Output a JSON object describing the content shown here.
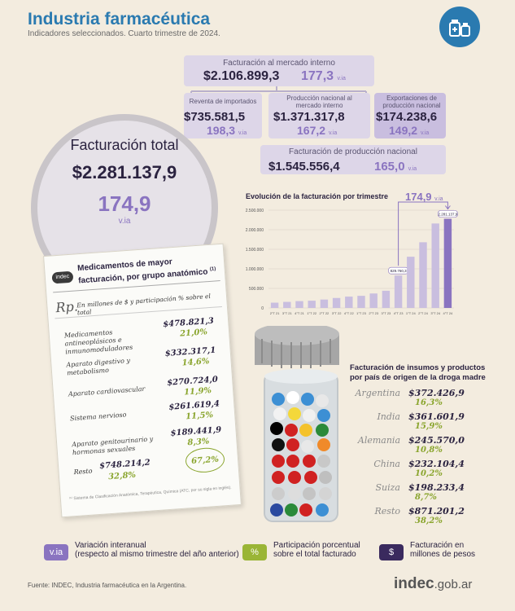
{
  "header": {
    "title": "Industria farmacéutica",
    "subtitle": "Indicadores seleccionados. Cuarto trimestre de 2024."
  },
  "mercado_interno": {
    "label": "Facturación al mercado interno",
    "value": "$2.106.899,3",
    "via": "177,3",
    "via_unit": "v.ia"
  },
  "reventa": {
    "label": "Reventa de importados",
    "value": "$735.581,5",
    "via": "198,3",
    "via_unit": "v.ia"
  },
  "produccion_mi": {
    "label": "Producción nacional al mercado interno",
    "value": "$1.371.317,8",
    "via": "167,2",
    "via_unit": "v.ia"
  },
  "exportaciones": {
    "label": "Exportaciones de producción nacional",
    "value": "$174.238,6",
    "via": "149,2",
    "via_unit": "v.ia"
  },
  "produccion_nacional": {
    "label": "Facturación de producción nacional",
    "value": "$1.545.556,4",
    "via": "165,0",
    "via_unit": "v.ia"
  },
  "total": {
    "label": "Facturación total",
    "value": "$2.281.137,9",
    "via": "174,9",
    "via_unit": "v.ia"
  },
  "chart_data": {
    "type": "bar",
    "title": "Evolución de la facturación por trimestre",
    "categories": [
      "2°T 21",
      "3°T 21",
      "4°T 21",
      "1°T 22",
      "2°T 22",
      "3°T 22",
      "4°T 22",
      "1°T 23",
      "2°T 23",
      "3°T 23",
      "4°T 23",
      "1°T 24",
      "2°T 24",
      "3°T 24",
      "4°T 24"
    ],
    "values": [
      135000,
      155000,
      175000,
      185000,
      215000,
      255000,
      290000,
      310000,
      370000,
      440000,
      829760.3,
      1310000,
      1680000,
      2160000,
      2281137.9
    ],
    "ylim": [
      0,
      2500000
    ],
    "yticks": [
      "0",
      "500.000",
      "1.000.000",
      "1.500.000",
      "2.000.000",
      "2.500.000"
    ],
    "data_labels": {
      "10": "829.760,3",
      "14": "2.281.137,9"
    },
    "annotation": "174,9",
    "annotation_unit": "v.ia",
    "colors": {
      "bar": "#c9bedf",
      "highlight": "#8a74c0"
    }
  },
  "medicamentos": {
    "logo": "indec",
    "title": "Medicamentos de mayor facturación, por grupo anatómico",
    "title_note": "(1)",
    "rp": "Rp.",
    "unit_note": "En millones de $ y participación % sobre el total",
    "rows": [
      {
        "name": "Medicamentos antineoplásicos e inmunomoduladores",
        "value": "$478.821,3",
        "pct": "21,0%"
      },
      {
        "name": "Aparato digestivo y metabolismo",
        "value": "$332.317,1",
        "pct": "14,6%"
      },
      {
        "name": "Aparato cardiovascular",
        "value": "$270.724,0",
        "pct": "11,9%"
      },
      {
        "name": "Sistema nervioso",
        "value": "$261.619,4",
        "pct": "11,5%"
      },
      {
        "name": "Aparato genitourinario y hormonas sexuales",
        "value": "$189.441,9",
        "pct": "8,3%"
      }
    ],
    "resto": {
      "name": "Resto",
      "value": "$748.214,2",
      "pct": "32,8%"
    },
    "circled": "67,2%",
    "footnote": "⁽¹⁾ Sistema de Clasificación Anatómica, Terapéutica, Química (ATC, por su sigla en inglés)."
  },
  "insumos": {
    "title": "Facturación de insumos y productos por país de origen de la droga madre",
    "rows": [
      {
        "country": "Argentina",
        "value": "$372.426,9",
        "pct": "16,3%"
      },
      {
        "country": "India",
        "value": "$361.601,9",
        "pct": "15,9%"
      },
      {
        "country": "Alemania",
        "value": "$245.570,0",
        "pct": "10,8%"
      },
      {
        "country": "China",
        "value": "$232.104,4",
        "pct": "10,2%"
      },
      {
        "country": "Suiza",
        "value": "$198.233,4",
        "pct": "8,7%"
      },
      {
        "country": "Resto",
        "value": "$871.201,2",
        "pct": "38,2%"
      }
    ]
  },
  "legend": {
    "via_badge": "v.ia",
    "via_text_1": "Variación interanual",
    "via_text_2": "(respecto al mismo trimestre del año anterior)",
    "pct_badge": "%",
    "pct_text_1": "Participación porcentual",
    "pct_text_2": "sobre el total facturado",
    "money_badge": "$",
    "money_text_1": "Facturación en",
    "money_text_2": "millones de pesos",
    "colors": {
      "via": "#8a74c0",
      "pct": "#9ab536",
      "money": "#3a2a5e"
    }
  },
  "footer": {
    "source": "Fuente: INDEC, Industria farmacéutica en la Argentina.",
    "brand_main": "indec",
    "brand_suffix": ".gob.ar"
  }
}
